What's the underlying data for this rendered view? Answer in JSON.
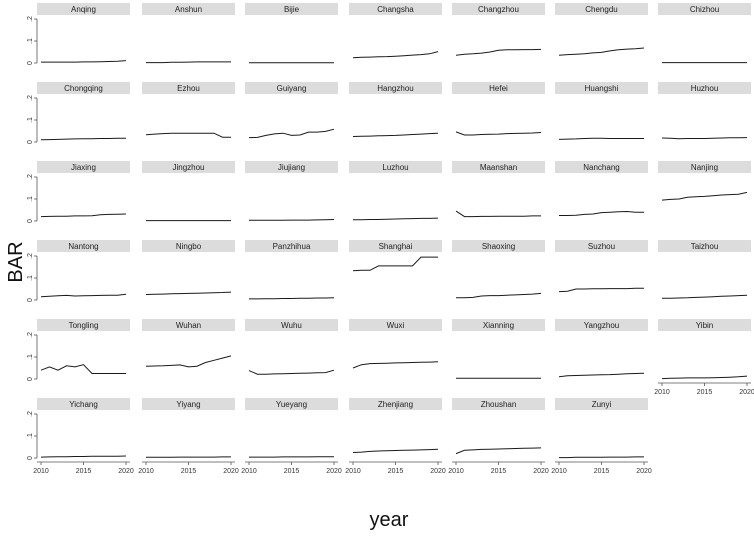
{
  "chart_data": {
    "type": "line",
    "layout": "small-multiples",
    "xlabel": "year",
    "ylabel": "BAR",
    "xlim": [
      2010,
      2020
    ],
    "ylim": [
      0,
      0.2
    ],
    "xticks": [
      2010,
      2015,
      2020
    ],
    "xtick_labels": [
      "2010",
      "2015",
      "2020"
    ],
    "yticks": [
      0,
      0.1,
      0.2
    ],
    "ytick_labels": [
      "0",
      ".1",
      ".2"
    ],
    "x": [
      2010,
      2011,
      2012,
      2013,
      2014,
      2015,
      2016,
      2017,
      2018,
      2019,
      2020
    ],
    "panel_header_color": "#dcdcdc",
    "line_color": "#1a1a1a",
    "grid": false,
    "panels": [
      {
        "name": "Anqing",
        "values": [
          0.004,
          0.004,
          0.004,
          0.004,
          0.004,
          0.005,
          0.005,
          0.006,
          0.007,
          0.008,
          0.011
        ]
      },
      {
        "name": "Anshun",
        "values": [
          0.002,
          0.002,
          0.002,
          0.003,
          0.003,
          0.004,
          0.005,
          0.005,
          0.005,
          0.005,
          0.005
        ]
      },
      {
        "name": "Bijie",
        "values": [
          0.001,
          0.001,
          0.001,
          0.001,
          0.001,
          0.001,
          0.001,
          0.001,
          0.001,
          0.001,
          0.001
        ]
      },
      {
        "name": "Changsha",
        "values": [
          0.024,
          0.026,
          0.027,
          0.028,
          0.029,
          0.031,
          0.033,
          0.036,
          0.038,
          0.042,
          0.052
        ]
      },
      {
        "name": "Changzhou",
        "values": [
          0.035,
          0.04,
          0.042,
          0.045,
          0.05,
          0.058,
          0.06,
          0.06,
          0.061,
          0.061,
          0.062
        ]
      },
      {
        "name": "Chengdu",
        "values": [
          0.035,
          0.038,
          0.04,
          0.042,
          0.046,
          0.048,
          0.055,
          0.06,
          0.063,
          0.065,
          0.068
        ]
      },
      {
        "name": "Chizhou",
        "values": [
          0.002,
          0.002,
          0.002,
          0.002,
          0.002,
          0.002,
          0.002,
          0.002,
          0.002,
          0.002,
          0.002
        ]
      },
      {
        "name": "Chongqing",
        "values": [
          0.01,
          0.011,
          0.012,
          0.013,
          0.014,
          0.015,
          0.015,
          0.016,
          0.016,
          0.017,
          0.017
        ]
      },
      {
        "name": "Ezhou",
        "values": [
          0.033,
          0.036,
          0.038,
          0.04,
          0.04,
          0.04,
          0.04,
          0.04,
          0.04,
          0.022,
          0.022
        ]
      },
      {
        "name": "Guiyang",
        "values": [
          0.02,
          0.021,
          0.03,
          0.037,
          0.04,
          0.03,
          0.032,
          0.045,
          0.045,
          0.048,
          0.058
        ]
      },
      {
        "name": "Hangzhou",
        "values": [
          0.025,
          0.026,
          0.027,
          0.028,
          0.029,
          0.03,
          0.032,
          0.034,
          0.036,
          0.038,
          0.04
        ]
      },
      {
        "name": "Hefei",
        "values": [
          0.046,
          0.032,
          0.032,
          0.034,
          0.035,
          0.036,
          0.038,
          0.039,
          0.04,
          0.041,
          0.043
        ]
      },
      {
        "name": "Huangshi",
        "values": [
          0.012,
          0.013,
          0.014,
          0.016,
          0.017,
          0.017,
          0.016,
          0.016,
          0.016,
          0.016,
          0.016
        ]
      },
      {
        "name": "Huzhou",
        "values": [
          0.018,
          0.017,
          0.015,
          0.016,
          0.016,
          0.016,
          0.017,
          0.018,
          0.019,
          0.019,
          0.02
        ]
      },
      {
        "name": "Jiaxing",
        "values": [
          0.02,
          0.021,
          0.022,
          0.022,
          0.023,
          0.023,
          0.024,
          0.028,
          0.03,
          0.031,
          0.032
        ]
      },
      {
        "name": "Jingzhou",
        "values": [
          0.002,
          0.002,
          0.002,
          0.002,
          0.002,
          0.002,
          0.002,
          0.002,
          0.002,
          0.002,
          0.002
        ]
      },
      {
        "name": "Jiujiang",
        "values": [
          0.003,
          0.003,
          0.003,
          0.003,
          0.003,
          0.004,
          0.004,
          0.004,
          0.005,
          0.006,
          0.007
        ]
      },
      {
        "name": "Luzhou",
        "values": [
          0.006,
          0.006,
          0.007,
          0.007,
          0.008,
          0.009,
          0.01,
          0.011,
          0.012,
          0.012,
          0.013
        ]
      },
      {
        "name": "Maanshan",
        "values": [
          0.045,
          0.02,
          0.02,
          0.021,
          0.021,
          0.022,
          0.022,
          0.022,
          0.022,
          0.023,
          0.023
        ]
      },
      {
        "name": "Nanchang",
        "values": [
          0.025,
          0.025,
          0.026,
          0.03,
          0.032,
          0.038,
          0.04,
          0.042,
          0.043,
          0.04,
          0.04
        ]
      },
      {
        "name": "Nanjing",
        "values": [
          0.095,
          0.098,
          0.1,
          0.108,
          0.11,
          0.112,
          0.115,
          0.118,
          0.12,
          0.122,
          0.13
        ]
      },
      {
        "name": "Nantong",
        "values": [
          0.015,
          0.017,
          0.019,
          0.021,
          0.018,
          0.019,
          0.02,
          0.021,
          0.022,
          0.022,
          0.026
        ]
      },
      {
        "name": "Ningbo",
        "values": [
          0.025,
          0.026,
          0.027,
          0.028,
          0.029,
          0.03,
          0.031,
          0.032,
          0.033,
          0.034,
          0.036
        ]
      },
      {
        "name": "Panzhihua",
        "values": [
          0.005,
          0.005,
          0.006,
          0.006,
          0.007,
          0.007,
          0.008,
          0.008,
          0.009,
          0.009,
          0.01
        ]
      },
      {
        "name": "Shanghai",
        "values": [
          0.133,
          0.135,
          0.135,
          0.155,
          0.155,
          0.155,
          0.155,
          0.155,
          0.195,
          0.195,
          0.195
        ]
      },
      {
        "name": "Shaoxing",
        "values": [
          0.01,
          0.01,
          0.012,
          0.018,
          0.02,
          0.02,
          0.022,
          0.023,
          0.025,
          0.027,
          0.03
        ]
      },
      {
        "name": "Suzhou",
        "values": [
          0.038,
          0.04,
          0.05,
          0.05,
          0.051,
          0.051,
          0.052,
          0.052,
          0.052,
          0.053,
          0.053
        ]
      },
      {
        "name": "Taizhou",
        "values": [
          0.008,
          0.008,
          0.009,
          0.01,
          0.012,
          0.013,
          0.015,
          0.017,
          0.018,
          0.02,
          0.022
        ]
      },
      {
        "name": "Tongling",
        "values": [
          0.04,
          0.055,
          0.04,
          0.06,
          0.055,
          0.065,
          0.025,
          0.025,
          0.025,
          0.025,
          0.025
        ]
      },
      {
        "name": "Wuhan",
        "values": [
          0.058,
          0.059,
          0.06,
          0.062,
          0.064,
          0.055,
          0.058,
          0.075,
          0.085,
          0.095,
          0.105
        ]
      },
      {
        "name": "Wuhu",
        "values": [
          0.038,
          0.022,
          0.022,
          0.023,
          0.024,
          0.025,
          0.026,
          0.027,
          0.028,
          0.029,
          0.04
        ]
      },
      {
        "name": "Wuxi",
        "values": [
          0.05,
          0.065,
          0.07,
          0.071,
          0.072,
          0.073,
          0.074,
          0.075,
          0.076,
          0.077,
          0.078
        ]
      },
      {
        "name": "Xianning",
        "values": [
          0.003,
          0.003,
          0.003,
          0.003,
          0.003,
          0.003,
          0.003,
          0.003,
          0.003,
          0.003,
          0.003
        ]
      },
      {
        "name": "Yangzhou",
        "values": [
          0.01,
          0.015,
          0.016,
          0.017,
          0.018,
          0.019,
          0.02,
          0.022,
          0.024,
          0.025,
          0.026
        ]
      },
      {
        "name": "Yibin",
        "values": [
          0.002,
          0.003,
          0.004,
          0.005,
          0.005,
          0.005,
          0.006,
          0.007,
          0.008,
          0.01,
          0.013
        ]
      },
      {
        "name": "Yichang",
        "values": [
          0.004,
          0.005,
          0.006,
          0.006,
          0.007,
          0.007,
          0.008,
          0.008,
          0.008,
          0.008,
          0.009
        ]
      },
      {
        "name": "Yiyang",
        "values": [
          0.003,
          0.003,
          0.003,
          0.003,
          0.004,
          0.004,
          0.004,
          0.004,
          0.004,
          0.005,
          0.005
        ]
      },
      {
        "name": "Yueyang",
        "values": [
          0.004,
          0.004,
          0.004,
          0.004,
          0.005,
          0.005,
          0.005,
          0.005,
          0.006,
          0.006,
          0.006
        ]
      },
      {
        "name": "Zhenjiang",
        "values": [
          0.025,
          0.027,
          0.03,
          0.032,
          0.033,
          0.034,
          0.035,
          0.036,
          0.037,
          0.038,
          0.04
        ]
      },
      {
        "name": "Zhoushan",
        "values": [
          0.02,
          0.035,
          0.037,
          0.039,
          0.04,
          0.041,
          0.042,
          0.043,
          0.044,
          0.045,
          0.046
        ]
      },
      {
        "name": "Zunyi",
        "values": [
          0.002,
          0.002,
          0.003,
          0.003,
          0.003,
          0.003,
          0.004,
          0.004,
          0.004,
          0.005,
          0.005
        ]
      }
    ]
  }
}
